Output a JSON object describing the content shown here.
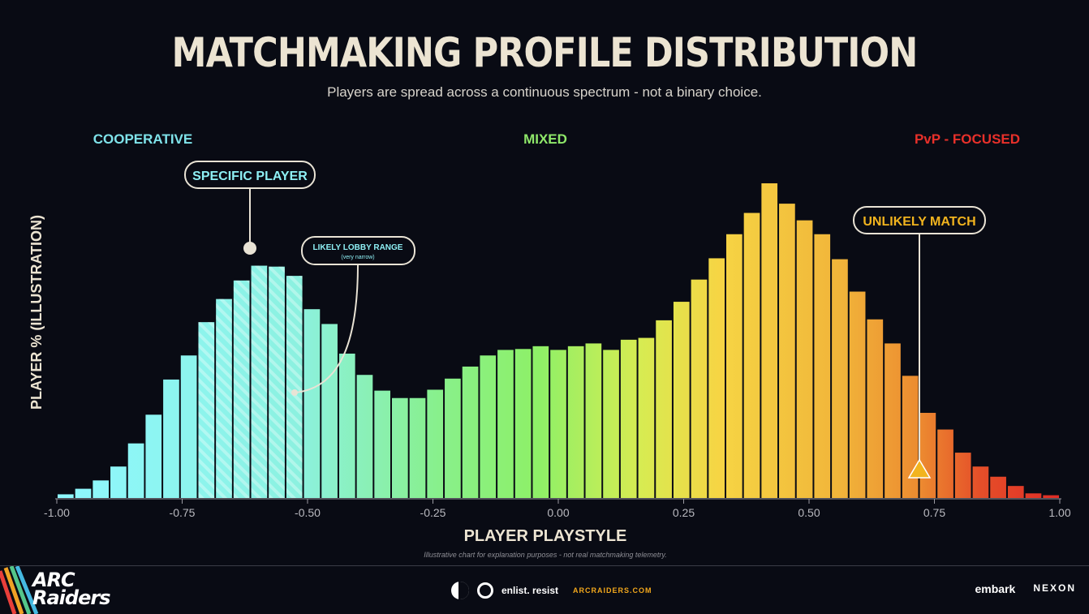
{
  "title": "MATCHMAKING PROFILE DISTRIBUTION",
  "subtitle": "Players are spread across a continuous spectrum - not a binary choice.",
  "footnote": "Illustrative chart for explanation purposes - not real matchmaking telemetry.",
  "zones": [
    {
      "label": "COOPERATIVE",
      "color": "#7fe3ea"
    },
    {
      "label": "MIXED",
      "color": "#8fe86a"
    },
    {
      "label": "PvP - FOCUSED",
      "color": "#e8302a"
    }
  ],
  "callouts": {
    "specific_player": "SPECIFIC PLAYER",
    "lobby_title": "LIKELY LOBBY RANGE",
    "lobby_sub": "(very narrow)",
    "unlikely": "UNLIKELY MATCH"
  },
  "footer": {
    "brand_line1": "ARC",
    "brand_line2": "Raiders",
    "enlist": "enlist. resist",
    "url": "ARCRAIDERS.COM",
    "partner1": "embark",
    "partner2": "NEXON"
  },
  "colors": {
    "cooperative": "#8ef0f5",
    "mixed": "#8ef067",
    "focused": "#f4c43a",
    "pvp": "#e5402a",
    "callout_border": "#e9e3d5",
    "warning": "#f2b41e"
  },
  "chart_data": {
    "type": "bar",
    "xlabel": "PLAYER PLAYSTYLE",
    "ylabel": "PLAYER % (ILLUSTRATION)",
    "xlim": [
      -1.0,
      1.0
    ],
    "xticks": [
      "-1.00",
      "-0.75",
      "-0.50",
      "-0.25",
      "0.00",
      "0.25",
      "0.50",
      "0.75",
      "1.00"
    ],
    "grid": false,
    "highlight_range": [
      -0.72,
      -0.52
    ],
    "specific_player_x": -0.61,
    "unlikely_match_x": 0.72,
    "values": [
      0.4,
      1.0,
      1.9,
      3.4,
      5.9,
      9.0,
      12.8,
      15.4,
      19.0,
      21.5,
      23.5,
      25.1,
      25.0,
      24.0,
      20.4,
      18.8,
      15.6,
      13.3,
      11.6,
      10.8,
      10.8,
      11.7,
      12.9,
      14.2,
      15.4,
      16.0,
      16.1,
      16.4,
      16.0,
      16.4,
      16.7,
      16.0,
      17.1,
      17.3,
      19.2,
      21.2,
      23.6,
      25.9,
      28.5,
      30.8,
      34.0,
      31.8,
      30.0,
      28.5,
      25.8,
      22.3,
      19.3,
      16.7,
      13.2,
      9.2,
      7.4,
      4.9,
      3.4,
      2.3,
      1.3,
      0.5,
      0.3
    ]
  }
}
